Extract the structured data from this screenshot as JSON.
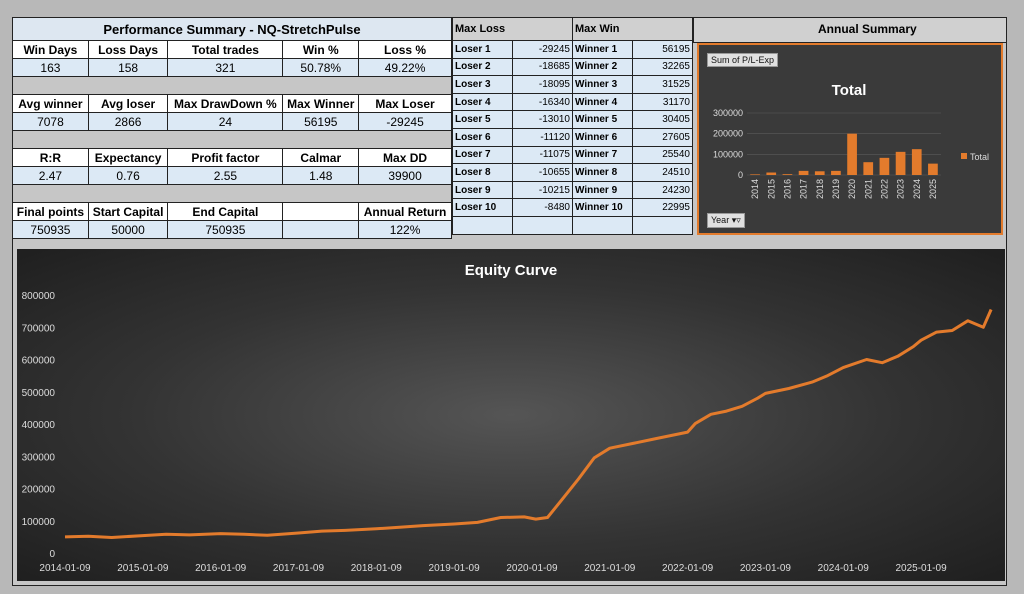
{
  "perf": {
    "title": "Performance Summary - NQ-StretchPulse",
    "rows": [
      {
        "headers": [
          "Win Days",
          "Loss Days",
          "Total trades",
          "Win %",
          "Loss %"
        ],
        "values": [
          "163",
          "158",
          "321",
          "50.78%",
          "49.22%"
        ]
      },
      {
        "headers": [
          "Avg winner",
          "Avg loser",
          "Max DrawDown %",
          "Max Winner",
          "Max Loser"
        ],
        "values": [
          "7078",
          "2866",
          "24",
          "56195",
          "-29245"
        ]
      },
      {
        "headers": [
          "R:R",
          "Expectancy",
          "Profit factor",
          "Calmar",
          "Max DD"
        ],
        "values": [
          "2.47",
          "0.76",
          "2.55",
          "1.48",
          "39900"
        ]
      },
      {
        "headers": [
          "Final points",
          "Start Capital",
          "End Capital",
          "",
          "Annual Return"
        ],
        "values": [
          "750935",
          "50000",
          "750935",
          "",
          "122%"
        ]
      }
    ]
  },
  "max_loss": {
    "title": "Max Loss",
    "labels": [
      "Loser 1",
      "Loser 2",
      "Loser 3",
      "Loser 4",
      "Loser 5",
      "Loser 6",
      "Loser 7",
      "Loser 8",
      "Loser 9",
      "Loser 10"
    ],
    "values": [
      "-29245",
      "-18685",
      "-18095",
      "-16340",
      "-13010",
      "-11120",
      "-11075",
      "-10655",
      "-10215",
      "-8480"
    ]
  },
  "max_win": {
    "title": "Max  Win",
    "labels": [
      "Winner 1",
      "Winner 2",
      "Winner 3",
      "Winner 4",
      "Winner 5",
      "Winner 6",
      "Winner 7",
      "Winner 8",
      "Winner 9",
      "Winner 10"
    ],
    "values": [
      "56195",
      "32265",
      "31525",
      "31170",
      "30405",
      "27605",
      "25540",
      "24510",
      "24230",
      "22995"
    ]
  },
  "annual": {
    "title": "Annual Summary",
    "pivot_field": "Sum of P/L-Exp",
    "filter_label": "Year",
    "legend_label": "Total"
  },
  "chart_data": [
    {
      "type": "bar",
      "title": "Total",
      "categories": [
        "2014",
        "2015",
        "2016",
        "2017",
        "2018",
        "2019",
        "2020",
        "2021",
        "2022",
        "2023",
        "2024",
        "2025"
      ],
      "series": [
        {
          "name": "Total",
          "values": [
            3000,
            12000,
            4000,
            20000,
            18000,
            20000,
            200000,
            62000,
            83000,
            112000,
            125000,
            55000
          ]
        }
      ],
      "ylim": [
        0,
        300000
      ],
      "yticks": [
        0,
        100000,
        200000,
        300000
      ],
      "legend": "right",
      "color": "#e37b2c"
    },
    {
      "type": "line",
      "title": "Equity Curve",
      "xlabels": [
        "2014-01-09",
        "2015-01-09",
        "2016-01-09",
        "2017-01-09",
        "2018-01-09",
        "2019-01-09",
        "2020-01-09",
        "2021-01-09",
        "2022-01-09",
        "2023-01-09",
        "2024-01-09",
        "2025-01-09"
      ],
      "ylim": [
        0,
        800000
      ],
      "yticks": [
        0,
        100000,
        200000,
        300000,
        400000,
        500000,
        600000,
        700000,
        800000
      ],
      "x": [
        2014.0,
        2014.3,
        2014.6,
        2015.0,
        2015.3,
        2015.6,
        2016.0,
        2016.3,
        2016.6,
        2017.0,
        2017.3,
        2017.6,
        2018.0,
        2018.3,
        2018.6,
        2019.0,
        2019.3,
        2019.6,
        2019.9,
        2020.05,
        2020.2,
        2020.4,
        2020.6,
        2020.8,
        2021.0,
        2021.3,
        2021.6,
        2022.0,
        2022.1,
        2022.3,
        2022.5,
        2022.7,
        2022.9,
        2023.0,
        2023.3,
        2023.6,
        2023.8,
        2024.0,
        2024.3,
        2024.5,
        2024.7,
        2024.9,
        2025.0,
        2025.2,
        2025.4,
        2025.6,
        2025.8,
        2025.9
      ],
      "values": [
        50000,
        52000,
        48000,
        54000,
        58000,
        56000,
        60000,
        58000,
        55000,
        62000,
        68000,
        70000,
        75000,
        80000,
        85000,
        90000,
        95000,
        110000,
        112000,
        105000,
        110000,
        170000,
        230000,
        295000,
        325000,
        340000,
        355000,
        375000,
        402000,
        430000,
        440000,
        455000,
        480000,
        495000,
        510000,
        530000,
        550000,
        575000,
        600000,
        590000,
        610000,
        640000,
        660000,
        685000,
        690000,
        720000,
        700000,
        755000
      ],
      "series_name": "Equity",
      "color": "#e37b2c"
    }
  ]
}
